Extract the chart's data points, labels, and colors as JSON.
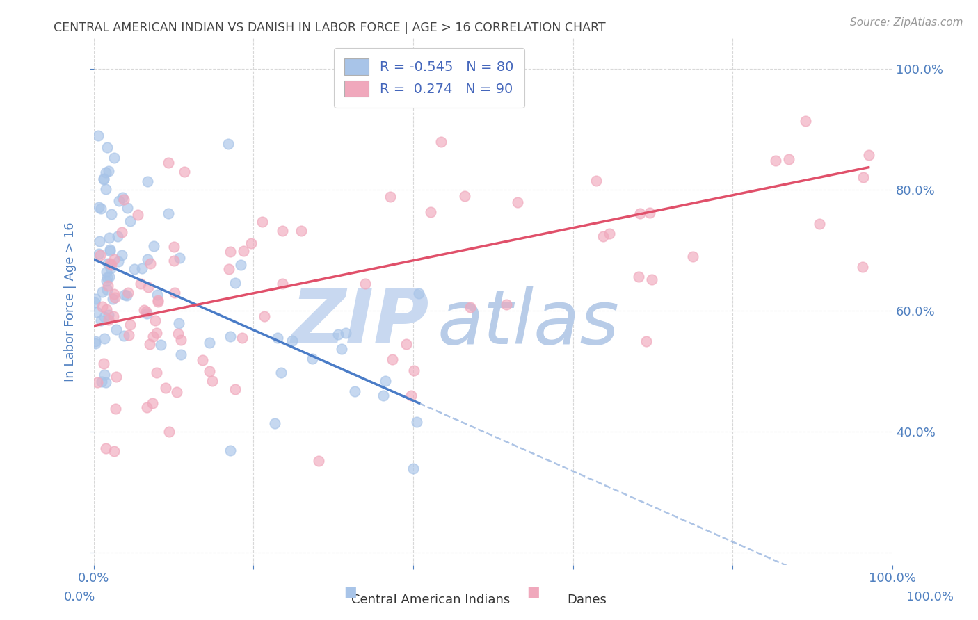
{
  "title": "CENTRAL AMERICAN INDIAN VS DANISH IN LABOR FORCE | AGE > 16 CORRELATION CHART",
  "source": "Source: ZipAtlas.com",
  "ylabel": "In Labor Force | Age > 16",
  "xlim": [
    0.0,
    1.0
  ],
  "ylim": [
    0.18,
    1.05
  ],
  "blue_R": -0.545,
  "blue_N": 80,
  "pink_R": 0.274,
  "pink_N": 90,
  "blue_color": "#a8c4e8",
  "pink_color": "#f0a8bc",
  "blue_line_color": "#4a7cc7",
  "pink_line_color": "#e0506a",
  "blue_label": "Central American Indians",
  "pink_label": "Danes",
  "watermark_zip": "ZIP",
  "watermark_atlas": "atlas",
  "watermark_color_zip": "#c8d8f0",
  "watermark_color_atlas": "#b8cce8",
  "background_color": "#ffffff",
  "grid_color": "#d8d8d8",
  "title_color": "#444444",
  "tick_label_color": "#5080c0",
  "legend_text_color": "#4466bb",
  "seed": 7,
  "blue_line_x0": 0.0,
  "blue_line_y0": 0.685,
  "blue_line_x1": 0.42,
  "blue_line_y1": 0.44,
  "pink_line_x0": 0.0,
  "pink_line_y0": 0.575,
  "pink_line_x1": 1.0,
  "pink_line_y1": 0.845
}
